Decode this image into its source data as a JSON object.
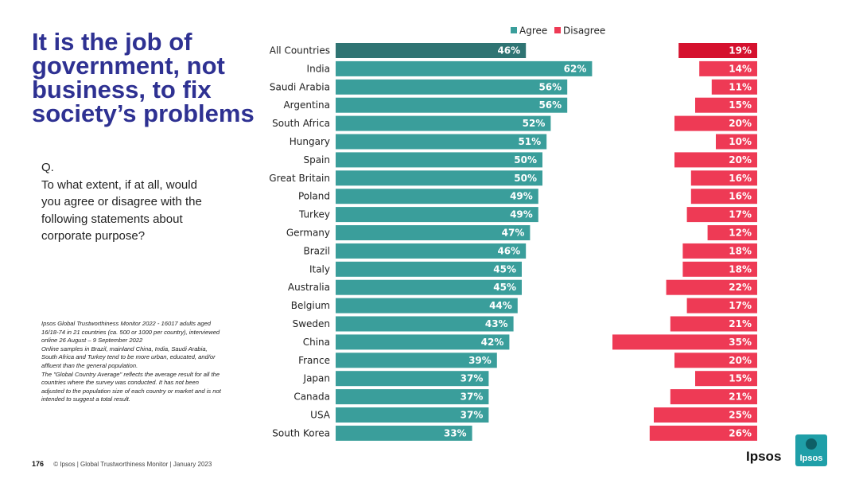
{
  "title": {
    "line1": "It is the job of",
    "line2": "government, not",
    "line3": "business, to fix",
    "line4": "society’s problems"
  },
  "question": {
    "q": "Q.",
    "line1": "To what extent, if at all, would",
    "line2": "you agree or disagree with the",
    "line3": "following statements about",
    "line4": "corporate purpose?"
  },
  "note": {
    "line1": "Ipsos Global Trustworthiness Monitor 2022 - 16017 adults aged",
    "line2": "16/18-74 in 21 countries (ca. 500 or 1000 per country), interviewed",
    "line3": "online 26 August – 9 September 2022",
    "line4": "Online samples in Brazil, mainland China, India, Saudi Arabia,",
    "line5": "South Africa and Turkey tend to be more urban, educated, and/or",
    "line6": "affluent than the general population.",
    "line7": "The \"Global Country Average\" reflects the average result for all the",
    "line8": "countries where the survey was conducted. It has not been",
    "line9": "adjusted to the population size of each country or market and is not",
    "line10": "intended to suggest a total result."
  },
  "footer": {
    "page": "176",
    "text": "© Ipsos | Global Trustworthiness Monitor | January 2023"
  },
  "brand": {
    "wordmark": "Ipsos",
    "logo_text": "Ipsos"
  },
  "colors": {
    "agree": "#3a9e9b",
    "agree_highlight": "#2f7473",
    "disagree": "#ee3a55",
    "disagree_highlight": "#d5112e",
    "title": "#2e3192",
    "logo": "#1f9fa8"
  },
  "chart_data": {
    "type": "bar",
    "orientation": "horizontal",
    "legend": {
      "position": "top",
      "entries": [
        "Agree",
        "Disagree"
      ]
    },
    "categories": [
      "All Countries",
      "India",
      "Saudi Arabia",
      "Argentina",
      "South Africa",
      "Hungary",
      "Spain",
      "Great Britain",
      "Poland",
      "Turkey",
      "Germany",
      "Brazil",
      "Italy",
      "Australia",
      "Belgium",
      "Sweden",
      "China",
      "France",
      "Japan",
      "Canada",
      "USA",
      "South Korea"
    ],
    "series": [
      {
        "name": "Agree",
        "values": [
          46,
          62,
          56,
          56,
          52,
          51,
          50,
          50,
          49,
          49,
          47,
          46,
          45,
          45,
          44,
          43,
          42,
          39,
          37,
          37,
          37,
          33
        ]
      },
      {
        "name": "Disagree",
        "values": [
          19,
          14,
          11,
          15,
          20,
          10,
          20,
          16,
          16,
          17,
          12,
          18,
          18,
          22,
          17,
          21,
          35,
          20,
          15,
          21,
          25,
          26
        ]
      }
    ],
    "value_suffix": "%",
    "highlight_category": "All Countries"
  }
}
